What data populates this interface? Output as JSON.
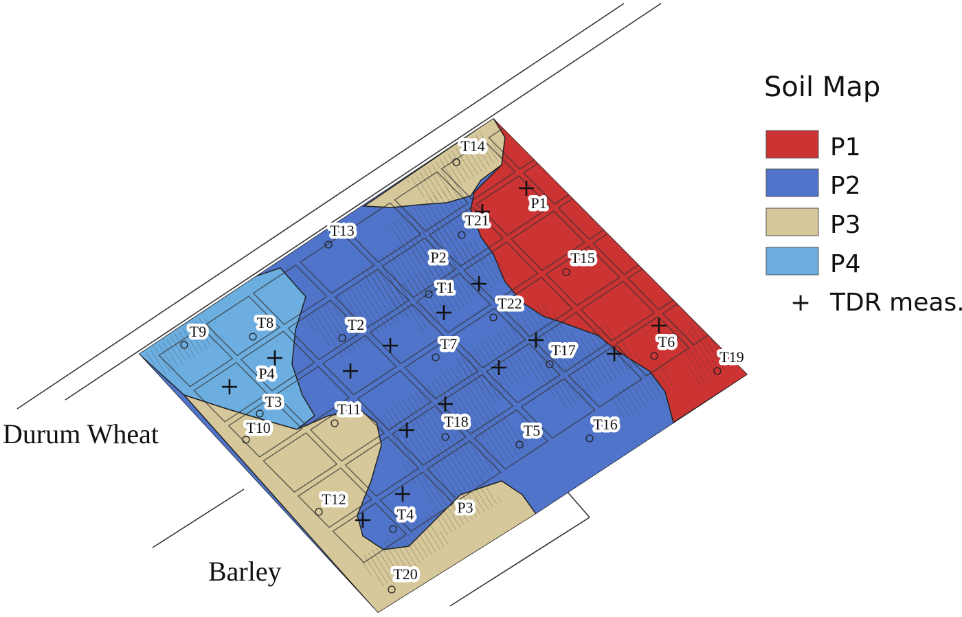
{
  "colors": {
    "P1": "#cc3333",
    "P2": "#4f74c9",
    "P3": "#d6c89a",
    "P4": "#6caee0",
    "background": "#ffffff"
  },
  "site_labels": {
    "durum_wheat": "Durum Wheat",
    "barley": "Barley"
  },
  "legend": {
    "title": "Soil Map",
    "items": [
      {
        "key": "P1",
        "label": "P1",
        "color": "#cc3333"
      },
      {
        "key": "P2",
        "label": "P2",
        "color": "#4f74c9"
      },
      {
        "key": "P3",
        "label": "P3",
        "color": "#d6c89a"
      },
      {
        "key": "P4",
        "label": "P4",
        "color": "#6caee0"
      }
    ],
    "tdr_symbol": "+",
    "tdr_label": "TDR meas."
  },
  "point_labels": [
    "T1",
    "T2",
    "T3",
    "T4",
    "T5",
    "T6",
    "T7",
    "T8",
    "T9",
    "T10",
    "T11",
    "T12",
    "T13",
    "T14",
    "T15",
    "T16",
    "T17",
    "T18",
    "T19",
    "T20",
    "T21",
    "T22",
    "P1",
    "P2",
    "P3",
    "P4"
  ]
}
